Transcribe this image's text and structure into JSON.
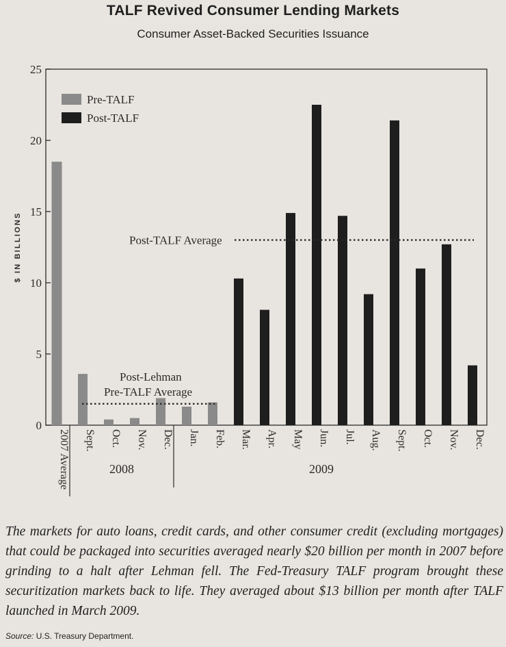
{
  "chart_data": {
    "type": "bar",
    "title": "TALF Revived Consumer Lending Markets",
    "subtitle": "Consumer Asset-Backed Securities Issuance",
    "ylabel": "$ IN BILLIONS",
    "ylim": [
      0,
      25
    ],
    "yticks": [
      0,
      5,
      10,
      15,
      20,
      25
    ],
    "categories": [
      "2007 Average",
      "Sept.",
      "Oct.",
      "Nov.",
      "Dec.",
      "Jan.",
      "Feb.",
      "Mar.",
      "Apr.",
      "May",
      "Jun.",
      "Jul.",
      "Aug.",
      "Sept.",
      "Oct.",
      "Nov.",
      "Dec."
    ],
    "values": [
      18.5,
      3.6,
      0.4,
      0.5,
      1.9,
      1.3,
      1.6,
      10.3,
      8.1,
      14.9,
      22.5,
      14.7,
      9.2,
      21.4,
      11.0,
      12.7,
      4.2
    ],
    "series_assignment": [
      "pre",
      "pre",
      "pre",
      "pre",
      "pre",
      "pre",
      "pre",
      "post",
      "post",
      "post",
      "post",
      "post",
      "post",
      "post",
      "post",
      "post",
      "post"
    ],
    "legend": [
      {
        "key": "pre",
        "label": "Pre-TALF",
        "color": "#8a8a8a"
      },
      {
        "key": "post",
        "label": "Post-TALF",
        "color": "#1e1e1e"
      }
    ],
    "legend_position": "top-left",
    "year_groups": [
      {
        "label": "2008",
        "categories": [
          "Sept.",
          "Oct.",
          "Nov.",
          "Dec."
        ]
      },
      {
        "label": "2009",
        "categories": [
          "Jan.",
          "Feb.",
          "Mar.",
          "Apr.",
          "May",
          "Jun.",
          "Jul.",
          "Aug.",
          "Sept.",
          "Oct.",
          "Nov.",
          "Dec."
        ]
      }
    ],
    "reference_lines": [
      {
        "label": "Post-TALF Average",
        "value": 13.0,
        "from": "Mar.",
        "to": "Dec."
      },
      {
        "label_lines": [
          "Post-Lehman",
          "Pre-TALF Average"
        ],
        "value": 1.5,
        "from": "Sept.",
        "to": "Feb."
      }
    ]
  },
  "caption": "The markets for auto loans, credit cards, and other consumer credit (excluding mortgages) that could be packaged into securities averaged nearly $20 billion per month in 2007 before grinding to a halt after Lehman fell. The Fed-Treasury TALF program brought these securitization markets back to life. They averaged about $13 billion per month after TALF launched in March 2009.",
  "source": {
    "label": "Source:",
    "text": " U.S. Treasury Department."
  },
  "colors": {
    "pre": "#8a8a8a",
    "post": "#1e1e1e",
    "axis": "#2a2a2a",
    "background": "#e8e5e0"
  }
}
